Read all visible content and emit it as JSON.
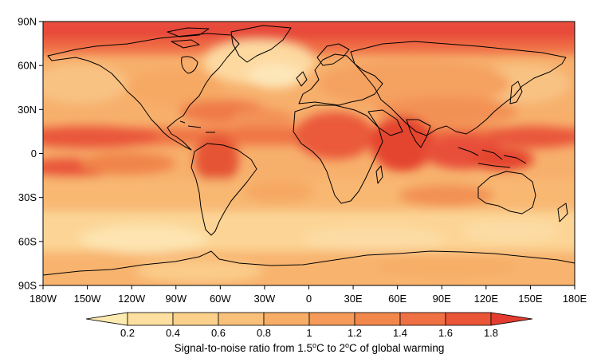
{
  "map": {
    "lat_labels": [
      "90N",
      "60N",
      "30N",
      "0",
      "30S",
      "60S",
      "90S"
    ],
    "lon_labels": [
      "180W",
      "150W",
      "120W",
      "90W",
      "60W",
      "30W",
      "0",
      "30E",
      "60E",
      "90E",
      "120E",
      "150E",
      "180E"
    ],
    "projection": "equirectangular"
  },
  "colorbar": {
    "tick_labels": [
      "0.2",
      "0.4",
      "0.6",
      "0.8",
      "1",
      "1.2",
      "1.4",
      "1.6",
      "1.8"
    ],
    "title_main": "Signal-to-noise ratio from 1.5",
    "title_unit1": "o",
    "title_mid": "C to 2",
    "title_unit2": "o",
    "title_end": "C of global warming",
    "colors": [
      "#fdeab0",
      "#fddf9f",
      "#fbd08b",
      "#f9c079",
      "#f7ad66",
      "#f59a58",
      "#f2874c",
      "#ef7042",
      "#ea5538",
      "#e43c30"
    ],
    "extend": "both"
  }
}
